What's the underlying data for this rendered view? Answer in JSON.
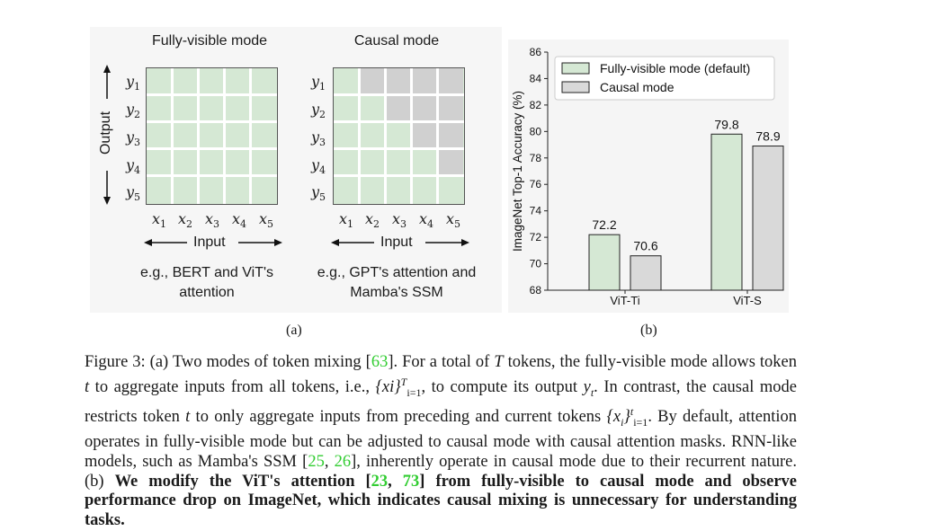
{
  "panel_a": {
    "fully_visible_title": "Fully-visible mode",
    "causal_title": "Causal mode",
    "output_label": "Output",
    "input_label": "Input",
    "y_labels": [
      "y",
      "y",
      "y",
      "y",
      "y"
    ],
    "y_subs": [
      "1",
      "2",
      "3",
      "4",
      "5"
    ],
    "x_labels": [
      "x",
      "x",
      "x",
      "x",
      "x"
    ],
    "x_subs": [
      "1",
      "2",
      "3",
      "4",
      "5"
    ],
    "fully_visible_caption_line1": "e.g., BERT and ViT's",
    "fully_visible_caption_line2": "attention",
    "causal_caption_line1": "e.g., GPT's attention and",
    "causal_caption_line2": "Mamba's SSM",
    "sublabel": "(a)"
  },
  "panel_b": {
    "sublabel": "(b)"
  },
  "chart_data": {
    "type": "bar",
    "categories": [
      "ViT-Ti",
      "ViT-S"
    ],
    "series": [
      {
        "name": "Fully-visible mode (default)",
        "values": [
          72.2,
          79.8
        ],
        "color": "#d5e8d4"
      },
      {
        "name": "Causal mode",
        "values": [
          70.6,
          78.9
        ],
        "color": "#d9d9d9"
      }
    ],
    "data_labels": [
      "72.2",
      "70.6",
      "79.8",
      "78.9"
    ],
    "ylabel": "ImageNet Top-1 Accuracy (%)",
    "xlabel": "",
    "ylim": [
      68,
      86
    ],
    "yticks": [
      "68",
      "70",
      "72",
      "74",
      "76",
      "78",
      "80",
      "82",
      "84",
      "86"
    ],
    "legend_position": "top-left",
    "grid": false
  },
  "caption": {
    "p1": "Figure 3: (a) Two modes of token mixing [",
    "ref63": "63",
    "p2": "]. For a total of ",
    "T": "T",
    "p3": " tokens, the fully-visible mode allows token ",
    "t1": "t",
    "p4": " to aggregate inputs from all tokens, i.e., ",
    "set1": "{xi}",
    "set1_sup": "T",
    "set1_sub": "i=1",
    "p5": ", to compute its output ",
    "yt": "y",
    "yt_sub": "t",
    "p6": ". In contrast, the causal mode restricts token ",
    "t2": "t",
    "p7": " to only aggregate inputs from preceding and current tokens ",
    "set2": "{x",
    "set2_i": "i",
    "set2_close": "}",
    "set2_sup": "t",
    "set2_sub": "i=1",
    "p8": ". By default, attention operates in fully-visible mode but can be adjusted to causal mode with causal attention masks. RNN-like models, such as Mamba's SSM [",
    "ref25": "25",
    "comma1": ", ",
    "ref26": "26",
    "p9": "], inherently operate in causal mode due to their recurrent nature. (b) ",
    "bold1": "We modify the ViT's attention [",
    "ref23": "23",
    "comma2": ", ",
    "ref73": "73",
    "bold2": "] from fully-visible to causal mode and observe performance drop on ImageNet, which indicates causal mixing is unnecessary for understanding tasks."
  }
}
